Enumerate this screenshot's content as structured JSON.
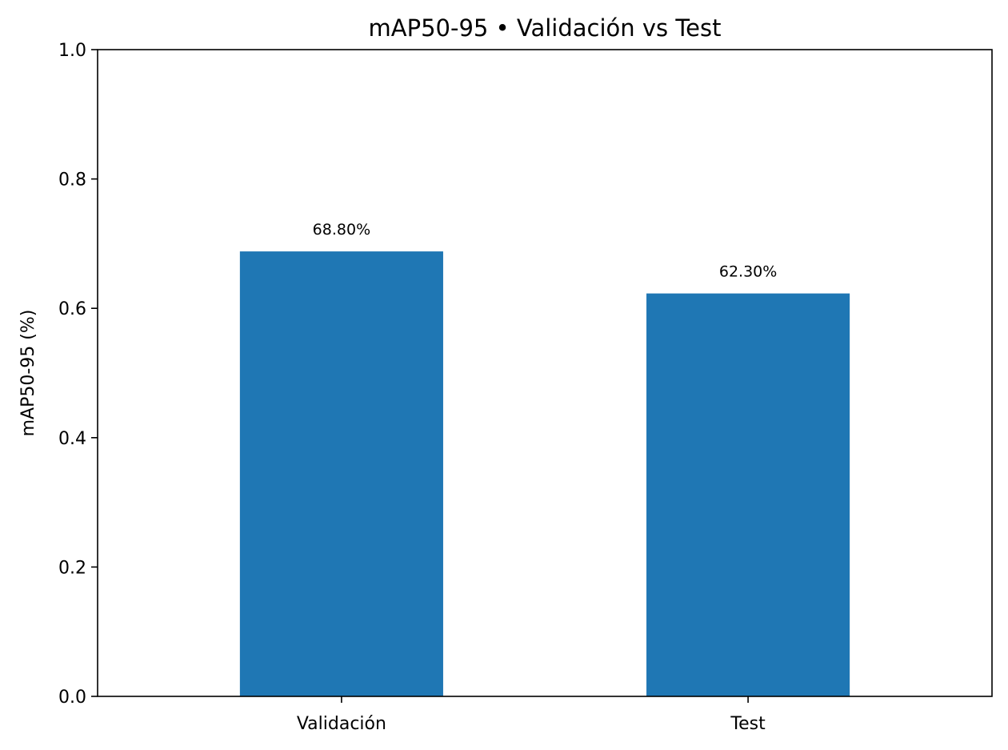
{
  "chart_data": {
    "type": "bar",
    "title": "mAP50-95 • Validación vs Test",
    "xlabel": "",
    "ylabel": "mAP50-95 (%)",
    "categories": [
      "Validación",
      "Test"
    ],
    "values": [
      0.688,
      0.623
    ],
    "data_labels": [
      "68.80%",
      "62.30%"
    ],
    "ylim": [
      0,
      1.0
    ],
    "yticks": [
      0.0,
      0.2,
      0.4,
      0.6,
      0.8,
      1.0
    ],
    "ytick_labels": [
      "0.0",
      "0.2",
      "0.4",
      "0.6",
      "0.8",
      "1.0"
    ],
    "bar_color": "#1f77b4",
    "grid": false,
    "legend": "none"
  }
}
